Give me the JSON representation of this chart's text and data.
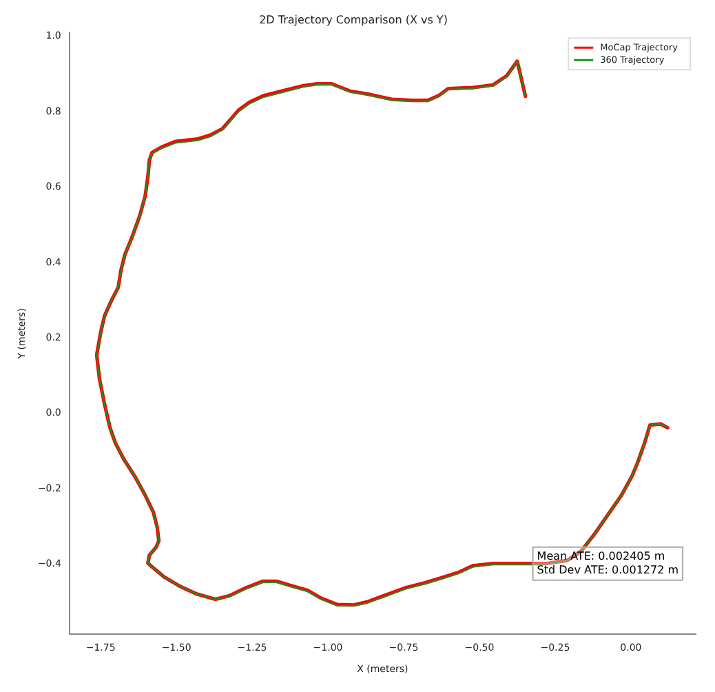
{
  "chart_data": {
    "type": "line",
    "title": "2D Trajectory Comparison (X vs Y)",
    "xlabel": "X (meters)",
    "ylabel": "Y (meters)",
    "xlim": [
      -1.853,
      0.214
    ],
    "ylim": [
      -0.586,
      1.01
    ],
    "xticks": [
      {
        "value": -1.75,
        "label": "−1.75"
      },
      {
        "value": -1.5,
        "label": "−1.50"
      },
      {
        "value": -1.25,
        "label": "−1.25"
      },
      {
        "value": -1.0,
        "label": "−1.00"
      },
      {
        "value": -0.75,
        "label": "−0.75"
      },
      {
        "value": -0.5,
        "label": "−0.50"
      },
      {
        "value": -0.25,
        "label": "−0.25"
      },
      {
        "value": 0,
        "label": "0.00"
      }
    ],
    "yticks": [
      {
        "value": -0.4,
        "label": "−0.4"
      },
      {
        "value": -0.2,
        "label": "−0.2"
      },
      {
        "value": 0,
        "label": "0.0"
      },
      {
        "value": 0.2,
        "label": "0.2"
      },
      {
        "value": 0.4,
        "label": "0.4"
      },
      {
        "value": 0.6,
        "label": "0.6"
      },
      {
        "value": 0.8,
        "label": "0.8"
      },
      {
        "value": 1.0,
        "label": "1.0"
      }
    ],
    "grid": false,
    "legend": "top right",
    "marker": "none",
    "line_style": "solid",
    "annotations": [
      "Mean ATE: 0.002405 m\nStd Dev ATE: 0.001272 m"
    ],
    "series": [
      {
        "name": "MoCap Trajectory",
        "color": "#ff0000",
        "x": [
          -0.348,
          -0.375,
          -0.41,
          -0.455,
          -0.522,
          -0.603,
          -0.634,
          -0.67,
          -0.723,
          -0.79,
          -0.87,
          -0.924,
          -0.969,
          -0.987,
          -1.036,
          -1.08,
          -1.147,
          -1.214,
          -1.259,
          -1.295,
          -1.326,
          -1.348,
          -1.388,
          -1.429,
          -1.504,
          -1.549,
          -1.58,
          -1.589,
          -1.594,
          -1.603,
          -1.621,
          -1.647,
          -1.67,
          -1.683,
          -1.692,
          -1.714,
          -1.737,
          -1.75,
          -1.763,
          -1.754,
          -1.737,
          -1.719,
          -1.701,
          -1.674,
          -1.638,
          -1.603,
          -1.576,
          -1.563,
          -1.558,
          -1.567,
          -1.589,
          -1.594,
          -1.576,
          -1.54,
          -1.487,
          -1.433,
          -1.371,
          -1.326,
          -1.272,
          -1.214,
          -1.17,
          -1.125,
          -1.067,
          -1.022,
          -0.969,
          -0.915,
          -0.871,
          -0.813,
          -0.746,
          -0.679,
          -0.621,
          -0.567,
          -0.522,
          -0.455,
          -0.366,
          -0.277,
          -0.21,
          -0.165,
          -0.121,
          -0.076,
          -0.031,
          0.004,
          0.022,
          0.045,
          0.063,
          0.098,
          0.121
        ],
        "values": [
          0.841,
          0.934,
          0.895,
          0.871,
          0.864,
          0.861,
          0.843,
          0.83,
          0.83,
          0.833,
          0.847,
          0.854,
          0.868,
          0.874,
          0.874,
          0.869,
          0.856,
          0.842,
          0.825,
          0.804,
          0.775,
          0.755,
          0.738,
          0.728,
          0.721,
          0.706,
          0.692,
          0.672,
          0.628,
          0.576,
          0.524,
          0.466,
          0.421,
          0.379,
          0.334,
          0.3,
          0.259,
          0.214,
          0.155,
          0.093,
          0.024,
          -0.038,
          -0.079,
          -0.121,
          -0.166,
          -0.217,
          -0.262,
          -0.303,
          -0.338,
          -0.355,
          -0.376,
          -0.397,
          -0.41,
          -0.434,
          -0.459,
          -0.479,
          -0.493,
          -0.484,
          -0.463,
          -0.445,
          -0.445,
          -0.456,
          -0.469,
          -0.49,
          -0.507,
          -0.508,
          -0.5,
          -0.483,
          -0.463,
          -0.449,
          -0.435,
          -0.421,
          -0.404,
          -0.398,
          -0.398,
          -0.398,
          -0.39,
          -0.366,
          -0.321,
          -0.269,
          -0.217,
          -0.166,
          -0.131,
          -0.079,
          -0.031,
          -0.028,
          -0.038
        ]
      },
      {
        "name": "360 Trajectory",
        "color": "#228b22",
        "x": [
          -0.348,
          -0.375,
          -0.41,
          -0.455,
          -0.522,
          -0.603,
          -0.634,
          -0.67,
          -0.723,
          -0.79,
          -0.87,
          -0.924,
          -0.969,
          -0.987,
          -1.036,
          -1.08,
          -1.147,
          -1.214,
          -1.259,
          -1.295,
          -1.326,
          -1.348,
          -1.388,
          -1.429,
          -1.504,
          -1.549,
          -1.58,
          -1.589,
          -1.594,
          -1.603,
          -1.621,
          -1.647,
          -1.67,
          -1.683,
          -1.692,
          -1.714,
          -1.737,
          -1.75,
          -1.763,
          -1.754,
          -1.737,
          -1.719,
          -1.701,
          -1.674,
          -1.638,
          -1.603,
          -1.576,
          -1.563,
          -1.558,
          -1.567,
          -1.589,
          -1.594,
          -1.576,
          -1.54,
          -1.487,
          -1.433,
          -1.371,
          -1.326,
          -1.272,
          -1.214,
          -1.17,
          -1.125,
          -1.067,
          -1.022,
          -0.969,
          -0.915,
          -0.871,
          -0.813,
          -0.746,
          -0.679,
          -0.621,
          -0.567,
          -0.522,
          -0.455,
          -0.366,
          -0.277,
          -0.21,
          -0.165,
          -0.121,
          -0.076,
          -0.031,
          0.004,
          0.022,
          0.045,
          0.063,
          0.098,
          0.121
        ],
        "values": [
          0.841,
          0.934,
          0.893,
          0.869,
          0.862,
          0.859,
          0.841,
          0.828,
          0.828,
          0.831,
          0.845,
          0.852,
          0.866,
          0.872,
          0.872,
          0.866,
          0.852,
          0.838,
          0.821,
          0.8,
          0.772,
          0.752,
          0.734,
          0.724,
          0.717,
          0.703,
          0.69,
          0.672,
          0.628,
          0.576,
          0.524,
          0.466,
          0.421,
          0.379,
          0.334,
          0.3,
          0.259,
          0.214,
          0.155,
          0.093,
          0.024,
          -0.038,
          -0.079,
          -0.121,
          -0.166,
          -0.217,
          -0.262,
          -0.303,
          -0.338,
          -0.355,
          -0.376,
          -0.397,
          -0.41,
          -0.434,
          -0.459,
          -0.479,
          -0.493,
          -0.486,
          -0.466,
          -0.448,
          -0.448,
          -0.459,
          -0.472,
          -0.493,
          -0.51,
          -0.51,
          -0.503,
          -0.486,
          -0.466,
          -0.452,
          -0.438,
          -0.424,
          -0.407,
          -0.4,
          -0.4,
          -0.4,
          -0.39,
          -0.366,
          -0.321,
          -0.269,
          -0.217,
          -0.166,
          -0.131,
          -0.079,
          -0.031,
          -0.028,
          -0.038
        ]
      }
    ]
  }
}
